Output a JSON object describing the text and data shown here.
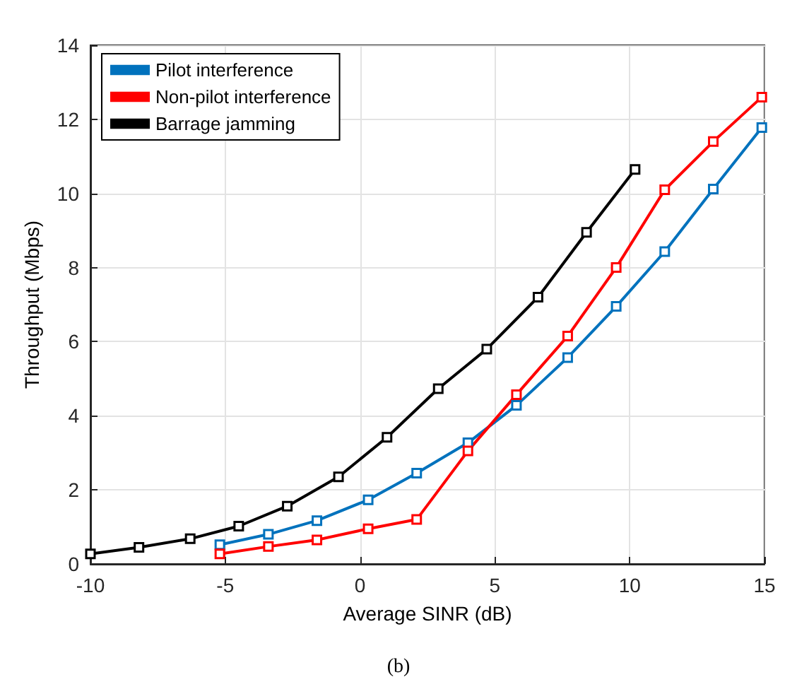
{
  "chart_data": {
    "type": "line",
    "xlabel": "Average SINR (dB)",
    "ylabel": "Throughput (Mbps)",
    "annotations": [
      "(b)"
    ],
    "xlim": [
      -10,
      15
    ],
    "xticks": [
      -10,
      -5,
      0,
      5,
      10,
      15
    ],
    "ylim": [
      0,
      14
    ],
    "yticks": [
      0,
      2,
      4,
      6,
      8,
      10,
      12,
      14
    ],
    "grid": true,
    "legend": "top left",
    "marker": "square",
    "line_style": "solid",
    "series": [
      {
        "name": "Pilot interference",
        "color": "#0072bd",
        "x": [
          -5.2,
          -3.4,
          -1.6,
          0.3,
          2.1,
          4.0,
          5.8,
          7.7,
          9.5,
          11.3,
          13.1,
          14.9
        ],
        "values": [
          0.52,
          0.8,
          1.17,
          1.73,
          2.45,
          3.27,
          4.28,
          5.57,
          6.95,
          8.43,
          10.12,
          11.78
        ]
      },
      {
        "name": "Non-pilot interference",
        "color": "#ff0000",
        "x": [
          -5.2,
          -3.4,
          -1.6,
          0.3,
          2.1,
          4.0,
          5.8,
          7.7,
          9.5,
          11.3,
          13.1,
          14.9
        ],
        "values": [
          0.27,
          0.47,
          0.65,
          0.95,
          1.2,
          3.05,
          4.57,
          6.15,
          8.0,
          10.1,
          11.4,
          12.6
        ]
      },
      {
        "name": "Barrage jamming",
        "color": "#000000",
        "x": [
          -10,
          -8.2,
          -6.3,
          -4.5,
          -2.7,
          -0.8,
          1.0,
          2.9,
          4.7,
          6.6,
          8.4,
          10.2
        ],
        "values": [
          0.27,
          0.45,
          0.68,
          1.02,
          1.56,
          2.35,
          3.42,
          4.73,
          5.8,
          7.2,
          8.95,
          10.65
        ]
      }
    ]
  }
}
